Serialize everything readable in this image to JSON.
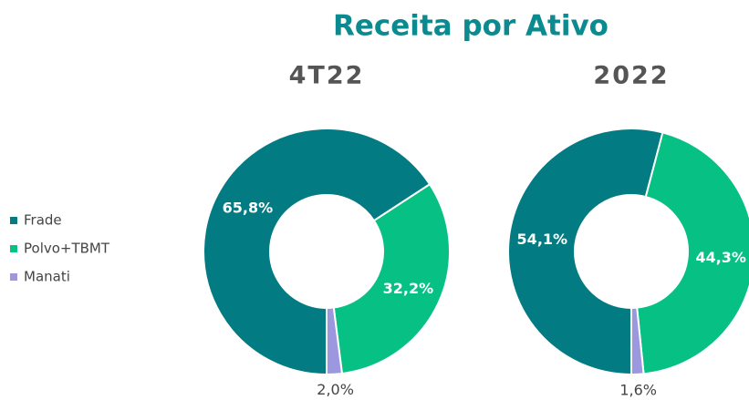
{
  "title": "Receita por Ativo",
  "chart_data": [
    {
      "type": "pie",
      "title": "4T22",
      "donut": true,
      "categories": [
        "Frade",
        "Polvo+TBMT",
        "Manati"
      ],
      "values": [
        65.8,
        32.2,
        2.0
      ],
      "value_labels": [
        "65,8%",
        "32,2%",
        "2,0%"
      ],
      "colors": [
        "#037b83",
        "#06c084",
        "#9b98e0"
      ]
    },
    {
      "type": "pie",
      "title": "2022",
      "donut": true,
      "categories": [
        "Frade",
        "Polvo+TBMT",
        "Manati"
      ],
      "values": [
        54.1,
        44.3,
        1.6
      ],
      "value_labels": [
        "54,1%",
        "44,3%",
        "1,6%"
      ],
      "colors": [
        "#037b83",
        "#06c084",
        "#9b98e0"
      ]
    }
  ]
}
